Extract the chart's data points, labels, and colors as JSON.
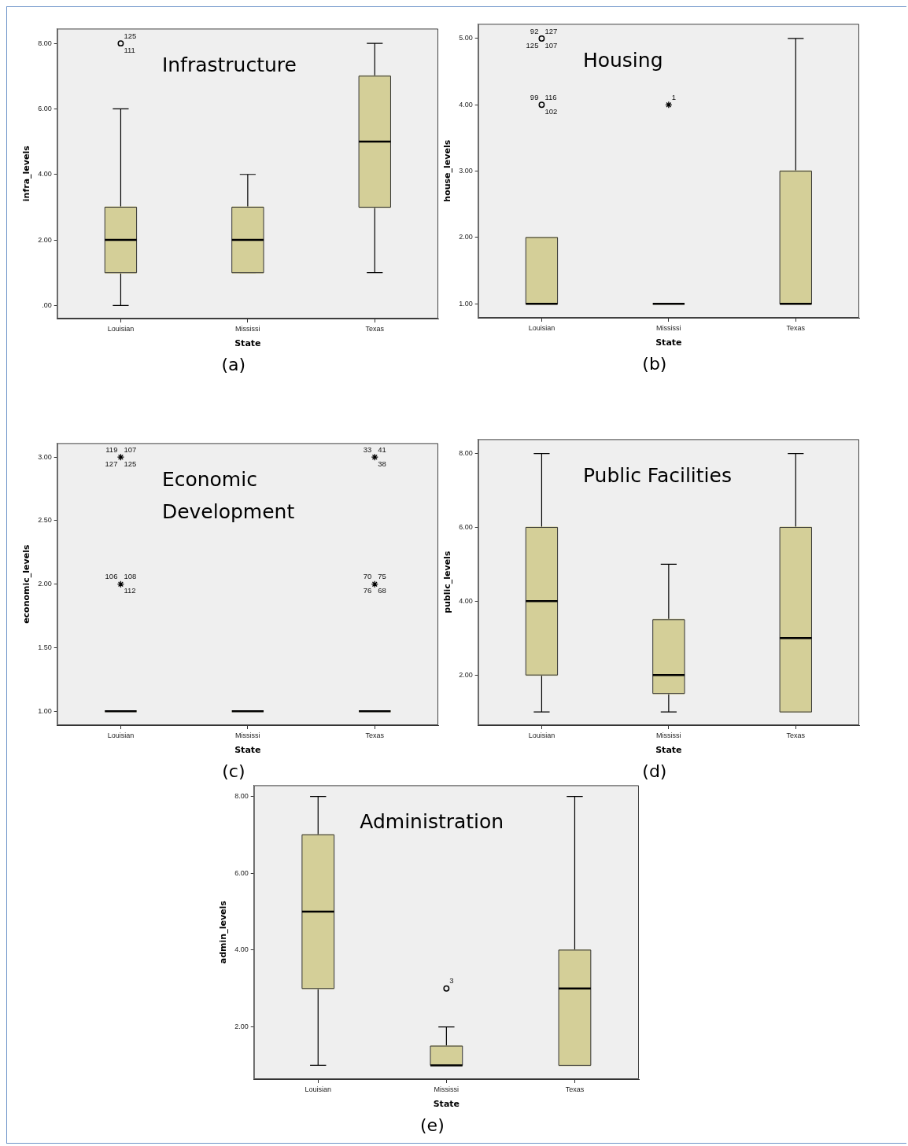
{
  "chart_data": [
    {
      "type": "box",
      "title": "Infrastructure",
      "xlabel": "State",
      "ylabel": "infra_levels",
      "categories": [
        "Louisian",
        "Mississi",
        "Texas"
      ],
      "ylim": [
        -0.4,
        8.45
      ],
      "yticks": [
        {
          "value": 0,
          "label": ".00"
        },
        {
          "value": 2,
          "label": "2.00"
        },
        {
          "value": 4,
          "label": "4.00"
        },
        {
          "value": 6,
          "label": "6.00"
        },
        {
          "value": 8,
          "label": "8.00"
        }
      ],
      "series": [
        {
          "type": "box",
          "color": "#d4cf98",
          "boxes": [
            {
              "low": 0,
              "q1": 1,
              "median": 2,
              "q3": 3,
              "high": 6
            },
            {
              "low": 1,
              "q1": 1,
              "median": 2,
              "q3": 3,
              "high": 4
            },
            {
              "low": 1,
              "q1": 3,
              "median": 5,
              "q3": 7,
              "high": 8
            }
          ]
        },
        {
          "type": "scatter",
          "marker": "circle",
          "color": "#000000",
          "x": [
            "Louisian"
          ],
          "values": [
            8
          ]
        }
      ],
      "annotations": [
        {
          "text": "125",
          "x": "Louisian",
          "y": 8
        },
        {
          "text": "111",
          "x": "Louisian",
          "y": 8
        },
        "(a)"
      ]
    },
    {
      "type": "box",
      "title": "Housing",
      "xlabel": "State",
      "ylabel": "house_levels",
      "categories": [
        "Louisian",
        "Mississi",
        "Texas"
      ],
      "ylim": [
        0.79,
        5.22
      ],
      "yticks": [
        {
          "value": 1,
          "label": "1.00"
        },
        {
          "value": 2,
          "label": "2.00"
        },
        {
          "value": 3,
          "label": "3.00"
        },
        {
          "value": 4,
          "label": "4.00"
        },
        {
          "value": 5,
          "label": "5.00"
        }
      ],
      "series": [
        {
          "type": "box",
          "color": "#d4cf98",
          "boxes": [
            {
              "low": 1,
              "q1": 1,
              "median": 1,
              "q3": 2,
              "high": 2
            },
            {
              "low": 1,
              "q1": 1,
              "median": 1,
              "q3": 1,
              "high": 1
            },
            {
              "low": 1,
              "q1": 1,
              "median": 1,
              "q3": 3,
              "high": 5
            }
          ]
        },
        {
          "type": "scatter",
          "marker": "circle",
          "color": "#000000",
          "x": [
            "Louisian",
            "Louisian"
          ],
          "values": [
            5,
            4
          ]
        },
        {
          "type": "scatter",
          "marker": "cross",
          "color": "#000000",
          "x": [
            "Mississi"
          ],
          "values": [
            4
          ]
        }
      ],
      "annotations": [
        {
          "text": "127",
          "x": "Louisian",
          "y": 5
        },
        {
          "text": "107",
          "x": "Louisian",
          "y": 5
        },
        {
          "text": "92",
          "x": "Louisian",
          "y": 5
        },
        {
          "text": "125",
          "x": "Louisian",
          "y": 5
        },
        {
          "text": "116",
          "x": "Louisian",
          "y": 4
        },
        {
          "text": "102",
          "x": "Louisian",
          "y": 4
        },
        {
          "text": "99",
          "x": "Louisian",
          "y": 4
        },
        {
          "text": "1",
          "x": "Mississi",
          "y": 4
        },
        "(b)"
      ]
    },
    {
      "type": "box",
      "title": "Economic Development",
      "xlabel": "State",
      "ylabel": "economic_levels",
      "categories": [
        "Louisian",
        "Mississi",
        "Texas"
      ],
      "ylim": [
        0.89,
        3.11
      ],
      "yticks": [
        {
          "value": 1,
          "label": "1.00"
        },
        {
          "value": 1.5,
          "label": "1.50"
        },
        {
          "value": 2,
          "label": "2.00"
        },
        {
          "value": 2.5,
          "label": "2.50"
        },
        {
          "value": 3,
          "label": "3.00"
        }
      ],
      "series": [
        {
          "type": "box",
          "color": "#d4cf98",
          "boxes": [
            {
              "low": 1,
              "q1": 1,
              "median": 1,
              "q3": 1,
              "high": 1
            },
            {
              "low": 1,
              "q1": 1,
              "median": 1,
              "q3": 1,
              "high": 1
            },
            {
              "low": 1,
              "q1": 1,
              "median": 1,
              "q3": 1,
              "high": 1
            }
          ]
        },
        {
          "type": "scatter",
          "marker": "cross",
          "color": "#000000",
          "x": [
            "Louisian",
            "Louisian",
            "Texas",
            "Texas"
          ],
          "values": [
            3,
            2,
            3,
            2
          ]
        }
      ],
      "annotations": [
        {
          "text": "107",
          "x": "Louisian",
          "y": 3
        },
        {
          "text": "125",
          "x": "Louisian",
          "y": 3
        },
        {
          "text": "119",
          "x": "Louisian",
          "y": 3
        },
        {
          "text": "127",
          "x": "Louisian",
          "y": 3
        },
        {
          "text": "108",
          "x": "Louisian",
          "y": 2
        },
        {
          "text": "112",
          "x": "Louisian",
          "y": 2
        },
        {
          "text": "106",
          "x": "Louisian",
          "y": 2
        },
        {
          "text": "41",
          "x": "Texas",
          "y": 3
        },
        {
          "text": "38",
          "x": "Texas",
          "y": 3
        },
        {
          "text": "33",
          "x": "Texas",
          "y": 3
        },
        {
          "text": "75",
          "x": "Texas",
          "y": 2
        },
        {
          "text": "68",
          "x": "Texas",
          "y": 2
        },
        {
          "text": "70",
          "x": "Texas",
          "y": 2
        },
        {
          "text": "76",
          "x": "Texas",
          "y": 2
        },
        "(c)"
      ]
    },
    {
      "type": "box",
      "title": "Public Facilities",
      "xlabel": "State",
      "ylabel": "public_levels",
      "categories": [
        "Louisian",
        "Mississi",
        "Texas"
      ],
      "ylim": [
        0.64,
        8.39
      ],
      "yticks": [
        {
          "value": 2,
          "label": "2.00"
        },
        {
          "value": 4,
          "label": "4.00"
        },
        {
          "value": 6,
          "label": "6.00"
        },
        {
          "value": 8,
          "label": "8.00"
        }
      ],
      "series": [
        {
          "type": "box",
          "color": "#d4cf98",
          "boxes": [
            {
              "low": 1,
              "q1": 2,
              "median": 4,
              "q3": 6,
              "high": 8
            },
            {
              "low": 1,
              "q1": 1.5,
              "median": 2,
              "q3": 3.5,
              "high": 5
            },
            {
              "low": 1,
              "q1": 1,
              "median": 3,
              "q3": 6,
              "high": 8
            }
          ]
        }
      ],
      "annotations": [
        "(d)"
      ]
    },
    {
      "type": "box",
      "title": "Administration",
      "xlabel": "State",
      "ylabel": "admin_levels",
      "categories": [
        "Louisian",
        "Mississi",
        "Texas"
      ],
      "ylim": [
        0.64,
        8.29
      ],
      "yticks": [
        {
          "value": 2,
          "label": "2.00"
        },
        {
          "value": 4,
          "label": "4.00"
        },
        {
          "value": 6,
          "label": "6.00"
        },
        {
          "value": 8,
          "label": "8.00"
        }
      ],
      "series": [
        {
          "type": "box",
          "color": "#d4cf98",
          "boxes": [
            {
              "low": 1,
              "q1": 3,
              "median": 5,
              "q3": 7,
              "high": 8
            },
            {
              "low": 1,
              "q1": 1,
              "median": 1,
              "q3": 1.5,
              "high": 2
            },
            {
              "low": 1,
              "q1": 1,
              "median": 3,
              "q3": 4,
              "high": 8
            }
          ]
        },
        {
          "type": "scatter",
          "marker": "circle",
          "color": "#000000",
          "x": [
            "Mississi"
          ],
          "values": [
            3
          ]
        }
      ],
      "annotations": [
        {
          "text": "3",
          "x": "Mississi",
          "y": 3
        },
        "(e)"
      ]
    }
  ]
}
